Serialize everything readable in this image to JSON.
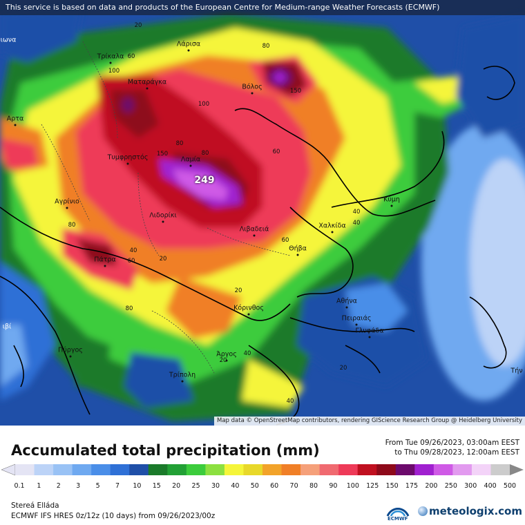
{
  "banner": "This service is based on data and products of the European Centre for Medium-range Weather Forecasts (ECMWF)",
  "map_credit": "Map data © OpenStreetMap contributors, rendering GIScience Research Group @ Heidelberg University",
  "cities": [
    {
      "id": "larisa",
      "name": "Λάρισα"
    },
    {
      "id": "trikala",
      "name": "Τρίκαλα"
    },
    {
      "id": "mataragka",
      "name": "Ματαράγκα"
    },
    {
      "id": "volos",
      "name": "Βόλος"
    },
    {
      "id": "arta",
      "name": "Αρτα"
    },
    {
      "id": "tymfristos",
      "name": "Τυμφρηστός"
    },
    {
      "id": "lamia",
      "name": "Λαμία"
    },
    {
      "id": "agrinio",
      "name": "Αγρίνιο"
    },
    {
      "id": "lidoriki",
      "name": "Λιδορίκι"
    },
    {
      "id": "kymi",
      "name": "Κύμη"
    },
    {
      "id": "chalkida",
      "name": "Χαλκίδα"
    },
    {
      "id": "livadeia",
      "name": "Λιβαδειά"
    },
    {
      "id": "thiva",
      "name": "Θήβα"
    },
    {
      "id": "patra",
      "name": "Πάτρα"
    },
    {
      "id": "korinthos",
      "name": "Κόρινθος"
    },
    {
      "id": "athina",
      "name": "Αθήνα"
    },
    {
      "id": "peiraias",
      "name": "Πειραιάς"
    },
    {
      "id": "glyfada",
      "name": "Γλυφάδα"
    },
    {
      "id": "pyrgos",
      "name": "Πύργος"
    },
    {
      "id": "argos",
      "name": "Άργος"
    },
    {
      "id": "tripoli",
      "name": "Τρίπολη"
    }
  ],
  "edge_labels": {
    "west_top": "ιωνα",
    "west_bottom": "ιβί",
    "east": "Τήν"
  },
  "contour_labels": [
    "20",
    "60",
    "100",
    "80",
    "150",
    "80",
    "100",
    "150",
    "60",
    "60",
    "40",
    "40",
    "80",
    "40",
    "60",
    "80",
    "20",
    "20",
    "40",
    "20",
    "40",
    "20",
    "80"
  ],
  "max_value": "249",
  "title": "Accumulated total precipitation (mm)",
  "period": {
    "from": "From Tue 09/26/2023, 03:00am EEST",
    "to": "to Thu 09/28/2023, 12:00am EEST"
  },
  "legend": {
    "ticks": [
      "0.1",
      "1",
      "2",
      "3",
      "5",
      "7",
      "10",
      "15",
      "20",
      "25",
      "30",
      "40",
      "50",
      "60",
      "70",
      "80",
      "90",
      "100",
      "125",
      "150",
      "175",
      "200",
      "250",
      "300",
      "400",
      "500"
    ],
    "colors": [
      "#e4e4f4",
      "#bcd3f7",
      "#99c2f5",
      "#6fa9f0",
      "#4a8ee8",
      "#2f70d6",
      "#1f4fa8",
      "#1a7a2a",
      "#22a035",
      "#3ccc3c",
      "#8ce040",
      "#f5f53a",
      "#e8d82a",
      "#f2a32a",
      "#f07f27",
      "#f5a07a",
      "#f06a70",
      "#ee3a58",
      "#c01020",
      "#8e0a1a",
      "#6c0a6c",
      "#a020d0",
      "#cf5ae6",
      "#e29aef",
      "#f3d3f8",
      "#cccccc"
    ]
  },
  "region": "Stereá Elláda",
  "model": "ECMWF IFS HRES 0z/12z (10 days) from  09/26/2023/00z",
  "ecmwf_logo": "ECMWF",
  "meteologix_logo": "meteologix.com"
}
